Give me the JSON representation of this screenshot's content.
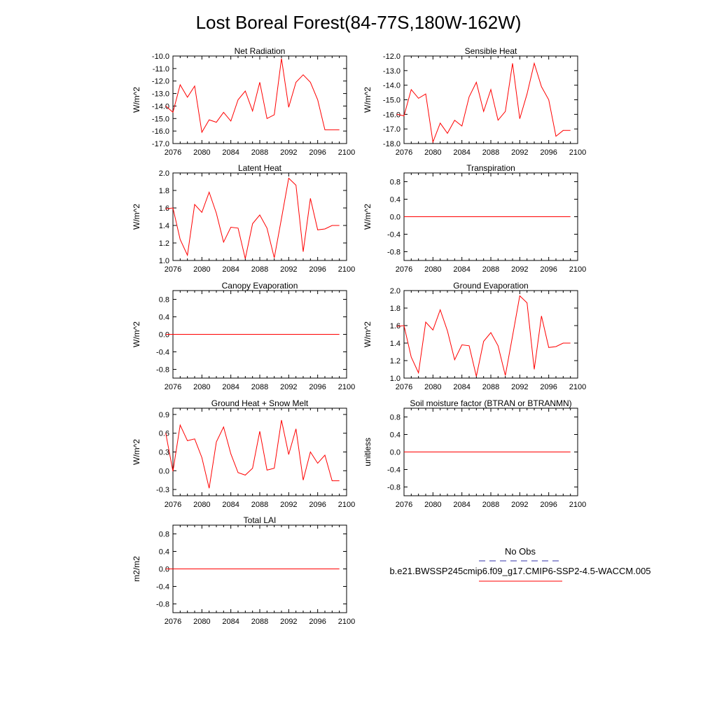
{
  "title": "Lost Boreal Forest(84-77S,180W-162W)",
  "colors": {
    "model_line": "#ff0000",
    "obs_line": "#3333aa",
    "frame": "#000000"
  },
  "legend": {
    "obs_label": "No Obs",
    "model_label": "b.e21.BWSSP245cmip6.f09_g17.CMIP6-SSP2-4.5-WACCM.005"
  },
  "chart_data": [
    {
      "type": "line",
      "title": "Net Radiation",
      "ylabel": "W/m^2",
      "xlim": [
        2076,
        2100
      ],
      "ylim": [
        -17,
        -10
      ],
      "xticks": [
        "2076",
        "2080",
        "2084",
        "2088",
        "2092",
        "2096",
        "2100"
      ],
      "yticks": [
        "-17.0",
        "-16.0",
        "-15.0",
        "-14.0",
        "-13.0",
        "-12.0",
        "-11.0",
        "-10.0"
      ],
      "x": [
        2075,
        2076,
        2077,
        2078,
        2079,
        2080,
        2081,
        2082,
        2083,
        2084,
        2085,
        2086,
        2087,
        2088,
        2089,
        2090,
        2091,
        2092,
        2093,
        2094,
        2095,
        2096,
        2097,
        2098,
        2099
      ],
      "y": [
        -14.0,
        -14.5,
        -12.3,
        -13.3,
        -12.4,
        -16.1,
        -15.1,
        -15.3,
        -14.5,
        -15.2,
        -13.5,
        -12.8,
        -14.4,
        -12.1,
        -15.0,
        -14.7,
        -10.2,
        -14.1,
        -12.1,
        -11.5,
        -12.1,
        -13.5,
        -15.9,
        -15.9,
        -15.9
      ]
    },
    {
      "type": "line",
      "title": "Sensible Heat",
      "ylabel": "W/m^2",
      "xlim": [
        2076,
        2100
      ],
      "ylim": [
        -18,
        -12
      ],
      "xticks": [
        "2076",
        "2080",
        "2084",
        "2088",
        "2092",
        "2096",
        "2100"
      ],
      "yticks": [
        "-18.0",
        "-17.0",
        "-16.0",
        "-15.0",
        "-14.0",
        "-13.0",
        "-12.0"
      ],
      "x": [
        2075,
        2076,
        2077,
        2078,
        2079,
        2080,
        2081,
        2082,
        2083,
        2084,
        2085,
        2086,
        2087,
        2088,
        2089,
        2090,
        2091,
        2092,
        2093,
        2094,
        2095,
        2096,
        2097,
        2098,
        2099
      ],
      "y": [
        -16.0,
        -16.1,
        -14.3,
        -14.9,
        -14.6,
        -17.9,
        -16.6,
        -17.3,
        -16.4,
        -16.8,
        -14.8,
        -13.8,
        -15.8,
        -14.3,
        -16.4,
        -15.8,
        -12.5,
        -16.3,
        -14.6,
        -12.5,
        -14.1,
        -15.0,
        -17.5,
        -17.1,
        -17.1
      ]
    },
    {
      "type": "line",
      "title": "Latent Heat",
      "ylabel": "W/m^2",
      "xlim": [
        2076,
        2100
      ],
      "ylim": [
        1.0,
        2.0
      ],
      "xticks": [
        "2076",
        "2080",
        "2084",
        "2088",
        "2092",
        "2096",
        "2100"
      ],
      "yticks": [
        "1.0",
        "1.2",
        "1.4",
        "1.6",
        "1.8",
        "2.0"
      ],
      "x": [
        2075,
        2076,
        2077,
        2078,
        2079,
        2080,
        2081,
        2082,
        2083,
        2084,
        2085,
        2086,
        2087,
        2088,
        2089,
        2090,
        2091,
        2092,
        2093,
        2094,
        2095,
        2096,
        2097,
        2098,
        2099
      ],
      "y": [
        1.59,
        1.6,
        1.24,
        1.06,
        1.64,
        1.55,
        1.78,
        1.54,
        1.21,
        1.38,
        1.37,
        1.02,
        1.42,
        1.52,
        1.37,
        1.03,
        1.48,
        1.94,
        1.86,
        1.1,
        1.71,
        1.35,
        1.36,
        1.4,
        1.4
      ]
    },
    {
      "type": "line",
      "title": "Transpiration",
      "ylabel": "W/m^2",
      "xlim": [
        2076,
        2100
      ],
      "ylim": [
        -1.0,
        1.0
      ],
      "xticks": [
        "2076",
        "2080",
        "2084",
        "2088",
        "2092",
        "2096",
        "2100"
      ],
      "yticks": [
        "-0.8",
        "-0.4",
        "0.0",
        "0.4",
        "0.8"
      ],
      "x": [
        2076,
        2099
      ],
      "y": [
        0.0,
        0.0
      ]
    },
    {
      "type": "line",
      "title": "Canopy Evaporation",
      "ylabel": "W/m^2",
      "xlim": [
        2076,
        2100
      ],
      "ylim": [
        -1.0,
        1.0
      ],
      "xticks": [
        "2076",
        "2080",
        "2084",
        "2088",
        "2092",
        "2096",
        "2100"
      ],
      "yticks": [
        "-0.8",
        "-0.4",
        "0.0",
        "0.4",
        "0.8"
      ],
      "x": [
        2075,
        2099
      ],
      "y": [
        0.0,
        0.0
      ]
    },
    {
      "type": "line",
      "title": "Ground Evaporation",
      "ylabel": "W/m^2",
      "xlim": [
        2076,
        2100
      ],
      "ylim": [
        1.0,
        2.0
      ],
      "xticks": [
        "2076",
        "2080",
        "2084",
        "2088",
        "2092",
        "2096",
        "2100"
      ],
      "yticks": [
        "1.0",
        "1.2",
        "1.4",
        "1.6",
        "1.8",
        "2.0"
      ],
      "x": [
        2075,
        2076,
        2077,
        2078,
        2079,
        2080,
        2081,
        2082,
        2083,
        2084,
        2085,
        2086,
        2087,
        2088,
        2089,
        2090,
        2091,
        2092,
        2093,
        2094,
        2095,
        2096,
        2097,
        2098,
        2099
      ],
      "y": [
        1.59,
        1.6,
        1.24,
        1.06,
        1.64,
        1.55,
        1.78,
        1.54,
        1.21,
        1.38,
        1.37,
        1.02,
        1.42,
        1.52,
        1.37,
        1.03,
        1.48,
        1.94,
        1.86,
        1.1,
        1.71,
        1.35,
        1.36,
        1.4,
        1.4
      ]
    },
    {
      "type": "line",
      "title": "Ground Heat + Snow Melt",
      "ylabel": "W/m^2",
      "xlim": [
        2076,
        2100
      ],
      "ylim": [
        -0.4,
        1.0
      ],
      "xticks": [
        "2076",
        "2080",
        "2084",
        "2088",
        "2092",
        "2096",
        "2100"
      ],
      "yticks": [
        "-0.3",
        "0.0",
        "0.3",
        "0.6",
        "0.9"
      ],
      "x": [
        2075,
        2076,
        2077,
        2078,
        2079,
        2080,
        2081,
        2082,
        2083,
        2084,
        2085,
        2086,
        2087,
        2088,
        2089,
        2090,
        2091,
        2092,
        2093,
        2094,
        2095,
        2096,
        2097,
        2098,
        2099
      ],
      "y": [
        0.6,
        -0.01,
        0.73,
        0.48,
        0.51,
        0.21,
        -0.28,
        0.46,
        0.7,
        0.27,
        -0.03,
        -0.07,
        0.04,
        0.63,
        0.01,
        0.04,
        0.81,
        0.26,
        0.67,
        -0.15,
        0.3,
        0.12,
        0.25,
        -0.16,
        -0.16
      ]
    },
    {
      "type": "line",
      "title": "Soil moisture factor (BTRAN or BTRANMN)",
      "ylabel": "unitless",
      "xlim": [
        2076,
        2100
      ],
      "ylim": [
        -1.0,
        1.0
      ],
      "xticks": [
        "2076",
        "2080",
        "2084",
        "2088",
        "2092",
        "2096",
        "2100"
      ],
      "yticks": [
        "-0.8",
        "-0.4",
        "0.0",
        "0.4",
        "0.8"
      ],
      "x": [
        2076,
        2099
      ],
      "y": [
        0.0,
        0.0
      ]
    },
    {
      "type": "line",
      "title": "Total LAI",
      "ylabel": "m2/m2",
      "xlim": [
        2076,
        2100
      ],
      "ylim": [
        -1.0,
        1.0
      ],
      "xticks": [
        "2076",
        "2080",
        "2084",
        "2088",
        "2092",
        "2096",
        "2100"
      ],
      "yticks": [
        "-0.8",
        "-0.4",
        "0.0",
        "0.4",
        "0.8"
      ],
      "x": [
        2075,
        2099
      ],
      "y": [
        0.0,
        0.0
      ]
    }
  ]
}
